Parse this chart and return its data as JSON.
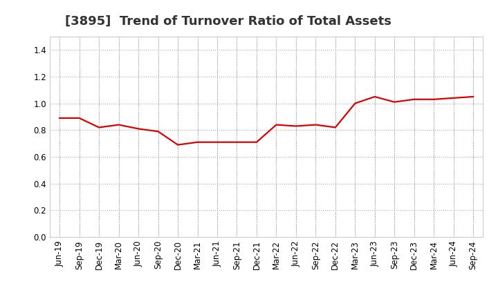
{
  "title": "[3895]  Trend of Turnover Ratio of Total Assets",
  "x_labels": [
    "Jun-19",
    "Sep-19",
    "Dec-19",
    "Mar-20",
    "Jun-20",
    "Sep-20",
    "Dec-20",
    "Mar-21",
    "Jun-21",
    "Sep-21",
    "Dec-21",
    "Mar-22",
    "Jun-22",
    "Sep-22",
    "Dec-22",
    "Mar-23",
    "Jun-23",
    "Sep-23",
    "Dec-23",
    "Mar-24",
    "Jun-24",
    "Sep-24"
  ],
  "y_values": [
    0.89,
    0.89,
    0.82,
    0.84,
    0.81,
    0.79,
    0.69,
    0.71,
    0.71,
    0.71,
    0.71,
    0.84,
    0.83,
    0.84,
    0.82,
    1.0,
    1.05,
    1.01,
    1.03,
    1.03,
    1.04,
    1.05
  ],
  "line_color": "#DD0000",
  "line_width": 1.6,
  "ylim": [
    0.0,
    1.5
  ],
  "yticks": [
    0.0,
    0.2,
    0.4,
    0.6,
    0.8,
    1.0,
    1.2,
    1.4
  ],
  "grid_color": "#aaaaaa",
  "background_color": "#ffffff",
  "title_fontsize": 13,
  "tick_fontsize": 8.5
}
